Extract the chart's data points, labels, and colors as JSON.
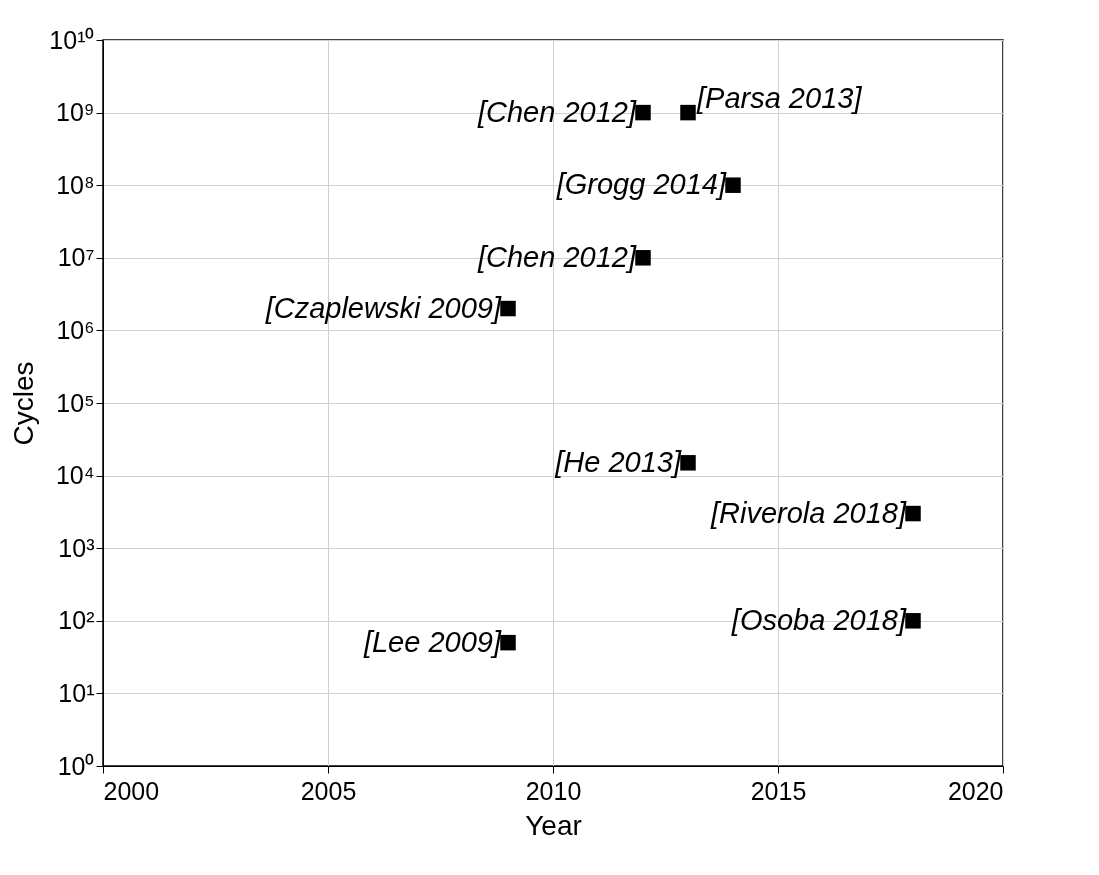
{
  "chart_data": {
    "type": "scatter",
    "xlabel": "Year",
    "ylabel": "Cycles",
    "x": [
      2012,
      2013,
      2014,
      2012,
      2009,
      2013,
      2018,
      2018,
      2009
    ],
    "series": [
      {
        "color": "#000000",
        "values": [
          1000000000,
          1000000000,
          100000000,
          10000000,
          2000000,
          15000,
          3000,
          100,
          50
        ]
      }
    ],
    "marker": "square",
    "log": "y",
    "grid": true,
    "xlim": [
      2000,
      2020
    ],
    "xticks": [
      2000,
      2005,
      2010,
      2015,
      2020
    ],
    "ylim": [
      1,
      10000000000
    ],
    "yticks": [
      {
        "value": 1,
        "label": "10⁰"
      },
      {
        "value": 10,
        "label": "10¹"
      },
      {
        "value": 100,
        "label": "10²"
      },
      {
        "value": 1000,
        "label": "10³"
      },
      {
        "value": 10000,
        "label": "10⁴"
      },
      {
        "value": 100000,
        "label": "10⁵"
      },
      {
        "value": 1000000,
        "label": "10⁶"
      },
      {
        "value": 10000000,
        "label": "10⁷"
      },
      {
        "value": 100000000,
        "label": "10⁸"
      },
      {
        "value": 1000000000,
        "label": "10⁹"
      },
      {
        "value": 10000000000,
        "label": "10¹⁰"
      }
    ],
    "annotations": [
      {
        "text": "[Chen 2012]",
        "x": 2012,
        "y": 1000000000
      },
      {
        "text": "[Parsa 2013]",
        "x": 2013,
        "y": 1000000000
      },
      {
        "text": "[Grogg 2014]",
        "x": 2014,
        "y": 100000000
      },
      {
        "text": "[Chen 2012]",
        "x": 2012,
        "y": 10000000
      },
      {
        "text": "[Czaplewski 2009]",
        "x": 2009,
        "y": 2000000
      },
      {
        "text": "[He 2013]",
        "x": 2013,
        "y": 15000
      },
      {
        "text": "[Riverola 2018]",
        "x": 2018,
        "y": 3000
      },
      {
        "text": "[Osoba 2018]",
        "x": 2018,
        "y": 100
      },
      {
        "text": "[Lee 2009]",
        "x": 2009,
        "y": 50
      }
    ]
  }
}
